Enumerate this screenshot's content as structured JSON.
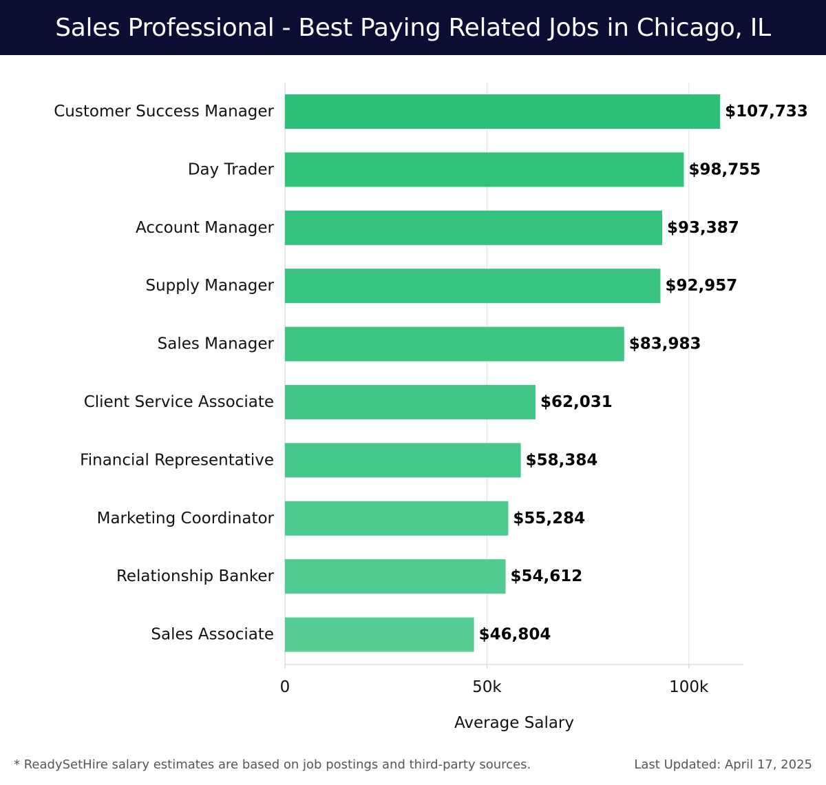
{
  "header": {
    "title": "Sales Professional - Best Paying Related Jobs in Chicago, IL"
  },
  "footer": {
    "note": "* ReadySetHire salary estimates are based on job postings and third-party sources.",
    "updated": "Last Updated: April 17, 2025"
  },
  "colors": {
    "header_bg": "#0c0d33",
    "bar_top": "#2bbf78",
    "bar_bottom": "#55cd94",
    "grid": "#e2e2e2"
  },
  "chart_data": {
    "type": "bar",
    "orientation": "horizontal",
    "title": "",
    "xlabel": "Average Salary",
    "ylabel": "",
    "xlim": [
      0,
      113500
    ],
    "xticks": [
      0,
      50000,
      100000
    ],
    "xtick_labels": [
      "0",
      "50k",
      "100k"
    ],
    "grid": true,
    "categories": [
      "Customer Success Manager",
      "Day Trader",
      "Account Manager",
      "Supply Manager",
      "Sales Manager",
      "Client Service Associate",
      "Financial Representative",
      "Marketing Coordinator",
      "Relationship Banker",
      "Sales Associate"
    ],
    "values": [
      107733,
      98755,
      93387,
      92957,
      83983,
      62031,
      58384,
      55284,
      54612,
      46804
    ],
    "value_labels": [
      "$107,733",
      "$98,755",
      "$93,387",
      "$92,957",
      "$83,983",
      "$62,031",
      "$58,384",
      "$55,284",
      "$54,612",
      "$46,804"
    ]
  }
}
